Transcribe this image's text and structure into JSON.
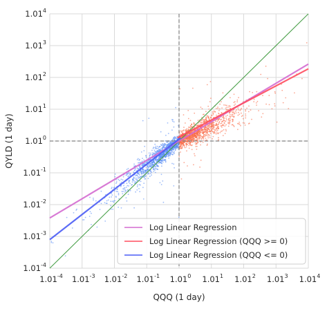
{
  "chart_data": {
    "type": "scatter",
    "xlabel": "QQQ (1 day)",
    "ylabel": "QYLD (1 day)",
    "x_scale": "log, base 1.01",
    "y_scale": "log, base 1.01",
    "xlim_exponent": [
      -4,
      4
    ],
    "ylim_exponent": [
      -4,
      4
    ],
    "x_ticks": [
      {
        "base": "1.01",
        "exp": "-4"
      },
      {
        "base": "1.01",
        "exp": "-3"
      },
      {
        "base": "1.01",
        "exp": "-2"
      },
      {
        "base": "1.01",
        "exp": "-1"
      },
      {
        "base": "1.01",
        "exp": "0"
      },
      {
        "base": "1.01",
        "exp": "1"
      },
      {
        "base": "1.01",
        "exp": "2"
      },
      {
        "base": "1.01",
        "exp": "3"
      },
      {
        "base": "1.01",
        "exp": "4"
      }
    ],
    "y_ticks": [
      {
        "base": "1.01",
        "exp": "-4"
      },
      {
        "base": "1.01",
        "exp": "-3"
      },
      {
        "base": "1.01",
        "exp": "-2"
      },
      {
        "base": "1.01",
        "exp": "-1"
      },
      {
        "base": "1.01",
        "exp": "0"
      },
      {
        "base": "1.01",
        "exp": "1"
      },
      {
        "base": "1.01",
        "exp": "2"
      },
      {
        "base": "1.01",
        "exp": "3"
      },
      {
        "base": "1.01",
        "exp": "4"
      }
    ],
    "grid": true,
    "reference_lines": [
      {
        "kind": "vertical",
        "at_exponent": 0,
        "style": "dashed",
        "color": "#808080"
      },
      {
        "kind": "horizontal",
        "at_exponent": 0,
        "style": "dashed",
        "color": "#808080"
      },
      {
        "kind": "identity y=x",
        "color": "#4aa04a"
      }
    ],
    "series": [
      {
        "name": "Log Linear Regression",
        "kind": "line",
        "color": "#d46bd0",
        "points_exponent": [
          [
            -4,
            -2.42
          ],
          [
            4,
            2.42
          ]
        ]
      },
      {
        "name": "Log Linear Regression (QQQ >= 0)",
        "kind": "line",
        "color": "#ff4d5e",
        "points_exponent": [
          [
            -0.05,
            0.1
          ],
          [
            4,
            2.27
          ]
        ]
      },
      {
        "name": "Log Linear Regression (QQQ <= 0)",
        "kind": "line",
        "color": "#4a5cf5",
        "points_exponent": [
          [
            -4,
            -3.1
          ],
          [
            0.05,
            0.1
          ]
        ]
      },
      {
        "kind": "scatter",
        "group": "QQQ >= 0",
        "color": "#fa6a48",
        "note": "about 1300 points; y exponent roughly 0.5 times x exponent with wide spread"
      },
      {
        "kind": "scatter",
        "group": "QQQ <= 0",
        "color": "#5b8ff5",
        "note": "about 1300 points; y exponent roughly 0.8 times x exponent with wide spread"
      }
    ],
    "legend": {
      "position": "lower right",
      "entries": [
        {
          "label": "Log Linear Regression",
          "color": "#d46bd0"
        },
        {
          "label": "Log Linear Regression (QQQ >= 0)",
          "color": "#ff4d5e"
        },
        {
          "label": "Log Linear Regression (QQQ <= 0)",
          "color": "#4a5cf5"
        }
      ]
    }
  }
}
